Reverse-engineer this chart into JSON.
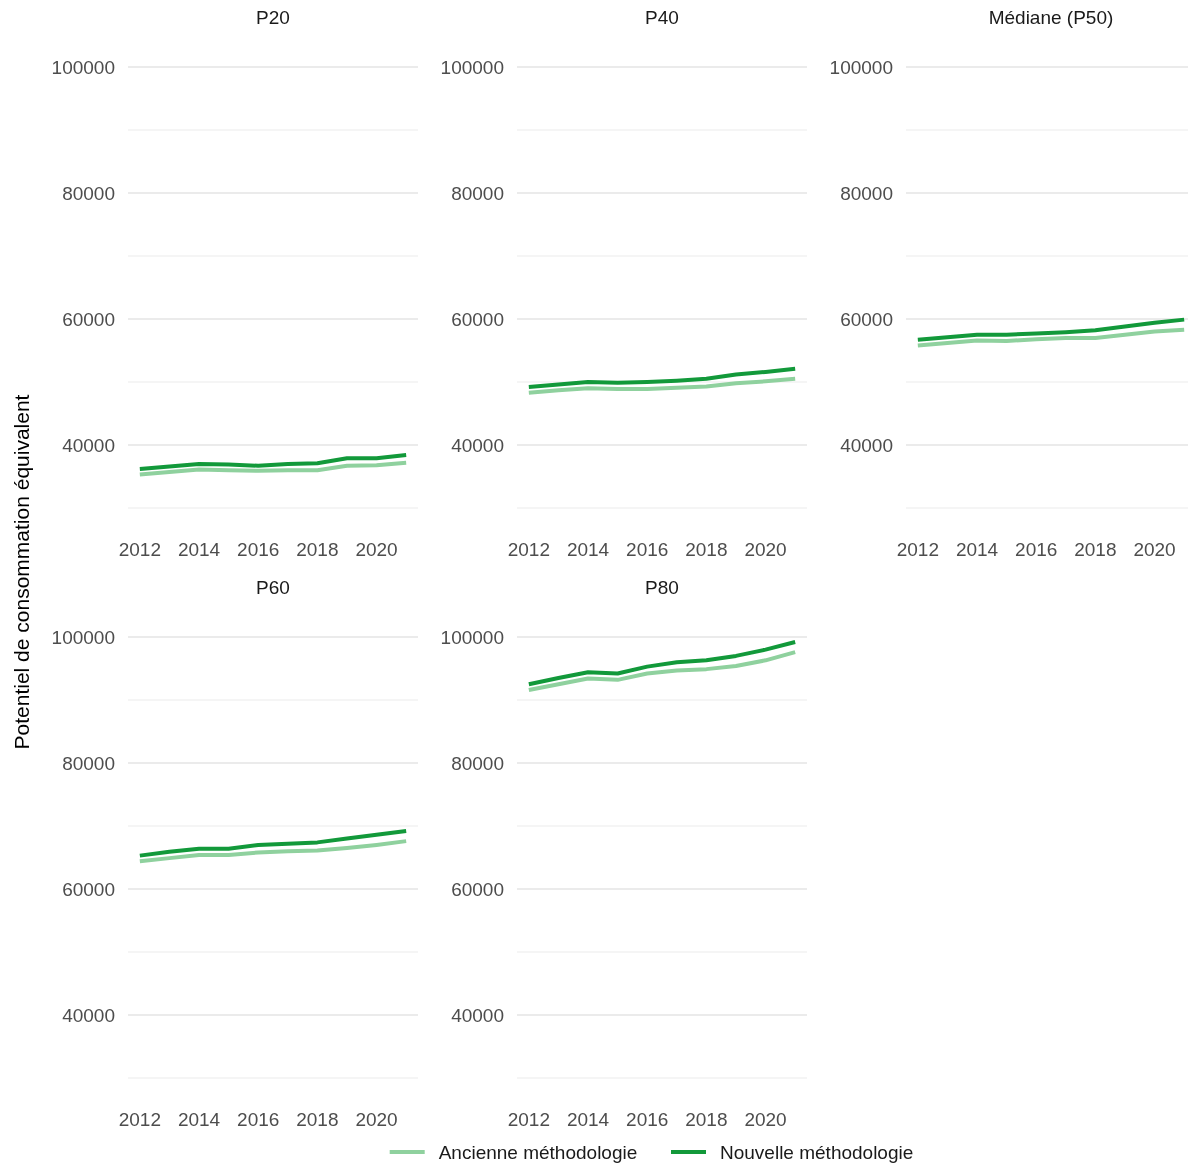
{
  "chart_data": [
    {
      "type": "line",
      "title": "P20",
      "ylabel": "Potentiel de consommation équivalent",
      "x": [
        2012,
        2013,
        2014,
        2015,
        2016,
        2017,
        2018,
        2019,
        2020,
        2021
      ],
      "xlim": [
        2011.6,
        2021.4
      ],
      "xticks": [
        2012,
        2014,
        2016,
        2018,
        2020
      ],
      "ylim": [
        30000,
        100000
      ],
      "yticks": [
        {
          "value": 30000,
          "label": null
        },
        40000,
        {
          "value": 50000,
          "label": null
        },
        60000,
        {
          "value": 70000,
          "label": null
        },
        80000,
        {
          "value": 90000,
          "label": null
        },
        100000
      ],
      "grid": "y",
      "legend": "bottom",
      "series": [
        {
          "name": "Ancienne méthodologie",
          "color": "#8fd19e",
          "values": [
            35300,
            35700,
            36100,
            36000,
            35900,
            36000,
            36000,
            36700,
            36800,
            37200
          ]
        },
        {
          "name": "Nouvelle méthodologie",
          "color": "#12993a",
          "values": [
            36200,
            36600,
            37000,
            36900,
            36700,
            37000,
            37100,
            37900,
            37900,
            38400
          ]
        }
      ]
    },
    {
      "type": "line",
      "title": "P40",
      "x": [
        2012,
        2013,
        2014,
        2015,
        2016,
        2017,
        2018,
        2019,
        2020,
        2021
      ],
      "xlim": [
        2011.6,
        2021.4
      ],
      "xticks": [
        2012,
        2014,
        2016,
        2018,
        2020
      ],
      "ylim": [
        30000,
        100000
      ],
      "yticks": [
        {
          "value": 30000,
          "label": null
        },
        40000,
        {
          "value": 50000,
          "label": null
        },
        60000,
        {
          "value": 70000,
          "label": null
        },
        80000,
        {
          "value": 90000,
          "label": null
        },
        100000
      ],
      "grid": "y",
      "series": [
        {
          "color": "#8fd19e",
          "values": [
            48300,
            48700,
            49000,
            48900,
            48900,
            49100,
            49300,
            49800,
            50100,
            50500
          ]
        },
        {
          "color": "#12993a",
          "values": [
            49200,
            49600,
            50000,
            49900,
            50000,
            50200,
            50500,
            51200,
            51600,
            52100
          ]
        }
      ]
    },
    {
      "type": "line",
      "title": "Médiane (P50)",
      "x": [
        2012,
        2013,
        2014,
        2015,
        2016,
        2017,
        2018,
        2019,
        2020,
        2021
      ],
      "xlim": [
        2011.6,
        2021.4
      ],
      "xticks": [
        2012,
        2014,
        2016,
        2018,
        2020
      ],
      "ylim": [
        30000,
        100000
      ],
      "yticks": [
        {
          "value": 30000,
          "label": null
        },
        40000,
        {
          "value": 50000,
          "label": null
        },
        60000,
        {
          "value": 70000,
          "label": null
        },
        80000,
        {
          "value": 90000,
          "label": null
        },
        100000
      ],
      "grid": "y",
      "series": [
        {
          "color": "#8fd19e",
          "values": [
            55800,
            56200,
            56600,
            56500,
            56800,
            57000,
            57000,
            57500,
            58000,
            58300
          ]
        },
        {
          "color": "#12993a",
          "values": [
            56700,
            57100,
            57500,
            57500,
            57700,
            57900,
            58200,
            58800,
            59400,
            59900
          ]
        }
      ]
    },
    {
      "type": "line",
      "title": "P60",
      "x": [
        2012,
        2013,
        2014,
        2015,
        2016,
        2017,
        2018,
        2019,
        2020,
        2021
      ],
      "xlim": [
        2011.6,
        2021.4
      ],
      "xticks": [
        2012,
        2014,
        2016,
        2018,
        2020
      ],
      "ylim": [
        30000,
        100000
      ],
      "yticks": [
        {
          "value": 30000,
          "label": null
        },
        40000,
        {
          "value": 50000,
          "label": null
        },
        60000,
        {
          "value": 70000,
          "label": null
        },
        80000,
        {
          "value": 90000,
          "label": null
        },
        100000
      ],
      "grid": "y",
      "series": [
        {
          "color": "#8fd19e",
          "values": [
            64400,
            64900,
            65400,
            65400,
            65800,
            66000,
            66100,
            66500,
            67000,
            67600
          ]
        },
        {
          "color": "#12993a",
          "values": [
            65300,
            65900,
            66400,
            66400,
            67000,
            67200,
            67400,
            68000,
            68600,
            69200
          ]
        }
      ]
    },
    {
      "type": "line",
      "title": "P80",
      "x": [
        2012,
        2013,
        2014,
        2015,
        2016,
        2017,
        2018,
        2019,
        2020,
        2021
      ],
      "xlim": [
        2011.6,
        2021.4
      ],
      "xticks": [
        2012,
        2014,
        2016,
        2018,
        2020
      ],
      "ylim": [
        30000,
        100000
      ],
      "yticks": [
        {
          "value": 30000,
          "label": null
        },
        40000,
        {
          "value": 50000,
          "label": null
        },
        60000,
        {
          "value": 70000,
          "label": null
        },
        80000,
        {
          "value": 90000,
          "label": null
        },
        100000
      ],
      "grid": "y",
      "series": [
        {
          "color": "#8fd19e",
          "values": [
            91600,
            92500,
            93400,
            93200,
            94200,
            94700,
            94900,
            95400,
            96300,
            97600
          ]
        },
        {
          "color": "#12993a",
          "values": [
            92500,
            93500,
            94400,
            94200,
            95300,
            96000,
            96300,
            97000,
            98000,
            99200
          ]
        }
      ]
    }
  ]
}
